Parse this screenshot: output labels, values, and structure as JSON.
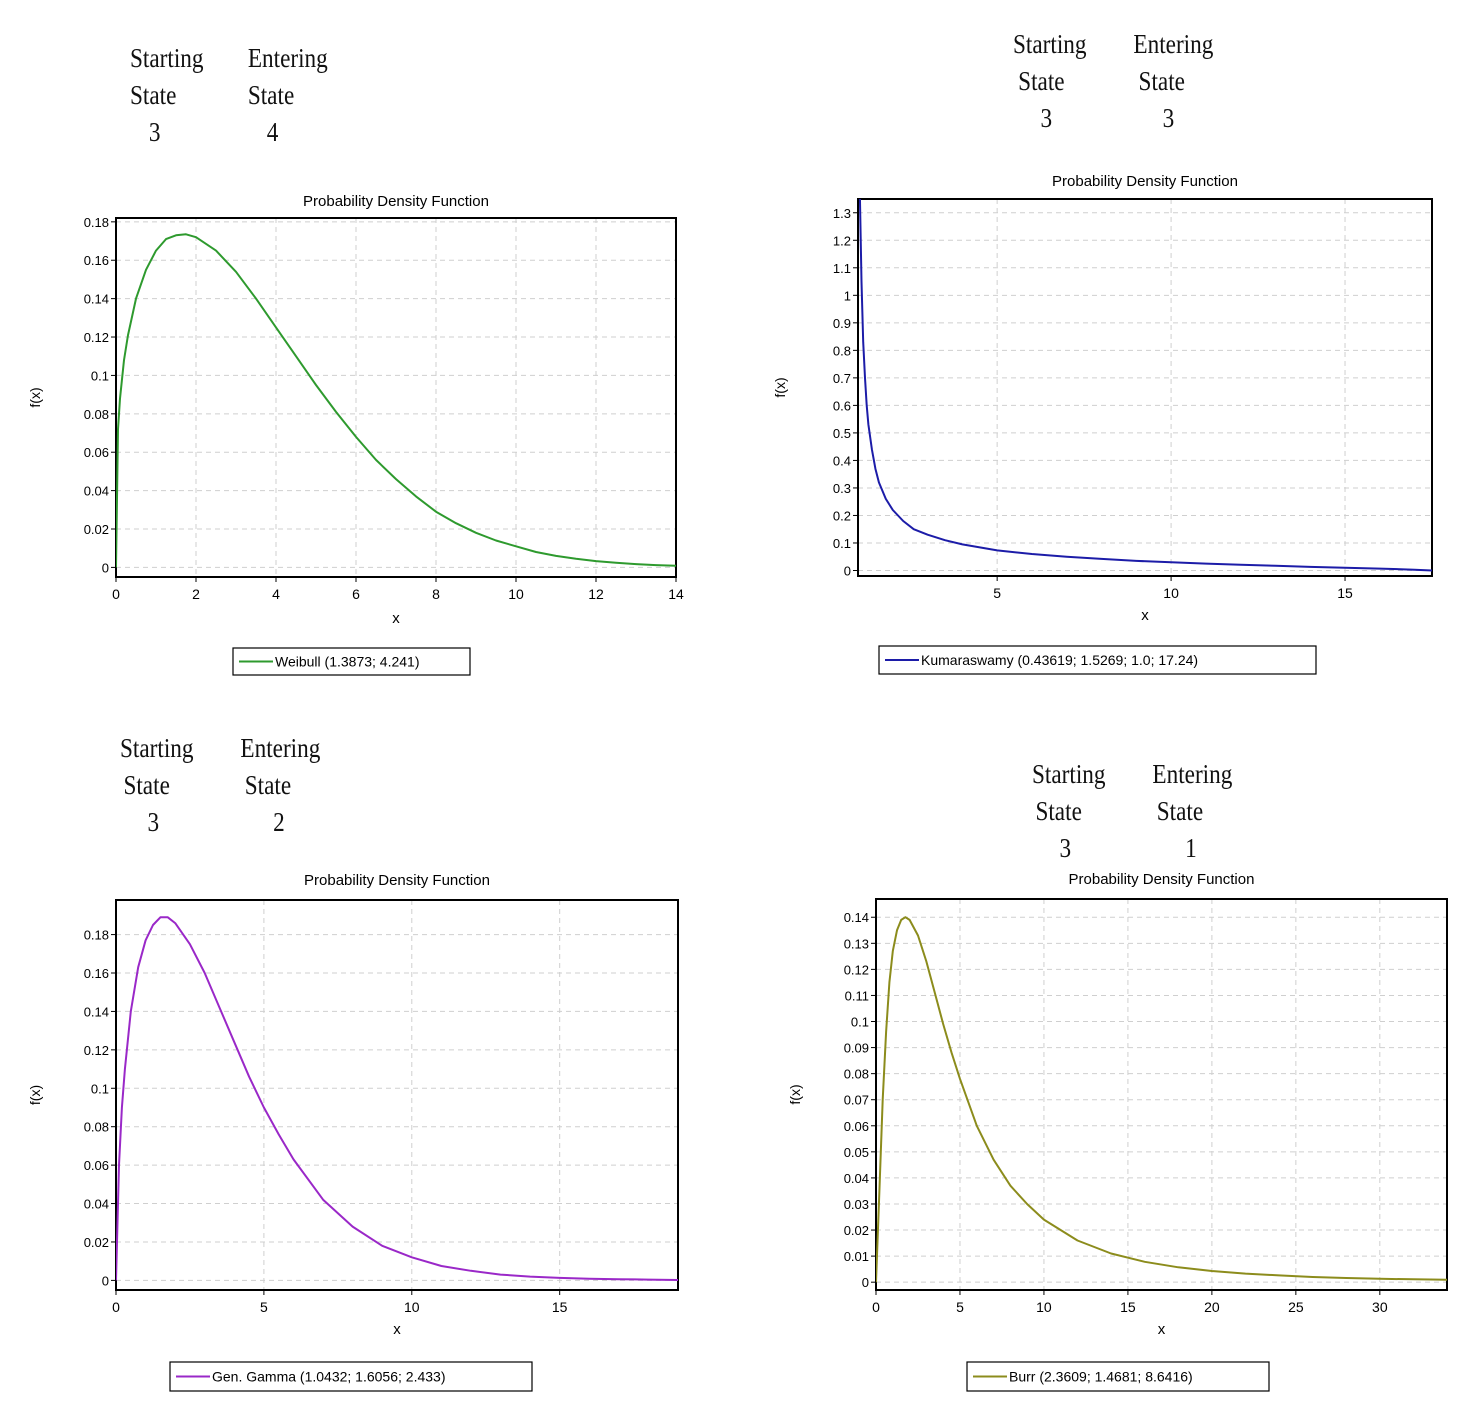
{
  "panels": [
    {
      "starting_label": [
        "Starting",
        "State"
      ],
      "entering_label": [
        "Entering",
        "State"
      ],
      "starting_state": "3",
      "entering_state": "4"
    },
    {
      "starting_label": [
        "Starting",
        "State"
      ],
      "entering_label": [
        "Entering",
        "State"
      ],
      "starting_state": "3",
      "entering_state": "3"
    },
    {
      "starting_label": [
        "Starting",
        "State"
      ],
      "entering_label": [
        "Entering",
        "State"
      ],
      "starting_state": "3",
      "entering_state": "2"
    },
    {
      "starting_label": [
        "Starting",
        "State"
      ],
      "entering_label": [
        "Entering",
        "State"
      ],
      "starting_state": "3",
      "entering_state": "1"
    }
  ],
  "chart_data": [
    {
      "type": "line",
      "title": "Probability Density Function",
      "xlabel": "x",
      "ylabel": "f(x)",
      "xlim": [
        0,
        14
      ],
      "ylim": [
        -0.005,
        0.182
      ],
      "xticks": [
        "0",
        "2",
        "4",
        "6",
        "8",
        "10",
        "12",
        "14"
      ],
      "xtick_values": [
        0,
        2,
        4,
        6,
        8,
        10,
        12,
        14
      ],
      "yticks": [
        "0",
        "0.02",
        "0.04",
        "0.06",
        "0.08",
        "0.1",
        "0.12",
        "0.14",
        "0.16",
        "0.18"
      ],
      "ytick_values": [
        0,
        0.02,
        0.04,
        0.06,
        0.08,
        0.1,
        0.12,
        0.14,
        0.16,
        0.18
      ],
      "grid": true,
      "legend": "bottom-center",
      "series": [
        {
          "name": "Weibull (1.3873; 4.241)",
          "color": "#2e9a2e",
          "x": [
            0,
            0.05,
            0.1,
            0.2,
            0.3,
            0.5,
            0.75,
            1,
            1.25,
            1.5,
            1.75,
            2,
            2.5,
            3,
            3.5,
            4,
            4.5,
            5,
            5.5,
            6,
            6.5,
            7,
            7.5,
            8,
            8.5,
            9,
            9.5,
            10,
            10.5,
            11,
            11.5,
            12,
            12.5,
            13,
            13.5,
            14
          ],
          "y": [
            0,
            0.072,
            0.088,
            0.108,
            0.121,
            0.14,
            0.155,
            0.165,
            0.171,
            0.173,
            0.1735,
            0.172,
            0.165,
            0.154,
            0.14,
            0.125,
            0.11,
            0.095,
            0.081,
            0.068,
            0.056,
            0.046,
            0.037,
            0.029,
            0.023,
            0.018,
            0.014,
            0.011,
            0.008,
            0.006,
            0.0045,
            0.0033,
            0.0024,
            0.0017,
            0.0012,
            0.0009
          ]
        }
      ]
    },
    {
      "type": "line",
      "title": "Probability Density Function",
      "xlabel": "x",
      "ylabel": "f(x)",
      "xlim": [
        1,
        17.5
      ],
      "ylim": [
        -0.02,
        1.35
      ],
      "xticks": [
        "5",
        "10",
        "15"
      ],
      "xtick_values": [
        5,
        10,
        15
      ],
      "yticks": [
        "0",
        "0.1",
        "0.2",
        "0.3",
        "0.4",
        "0.5",
        "0.6",
        "0.7",
        "0.8",
        "0.9",
        "1",
        "1.1",
        "1.2",
        "1.3"
      ],
      "ytick_values": [
        0,
        0.1,
        0.2,
        0.3,
        0.4,
        0.5,
        0.6,
        0.7,
        0.8,
        0.9,
        1,
        1.1,
        1.2,
        1.3
      ],
      "grid": true,
      "legend": "bottom-center",
      "series": [
        {
          "name": "Kumaraswamy (0.43619; 1.5269; 1.0; 17.24)",
          "color": "#1c1ca8",
          "x": [
            1.05,
            1.1,
            1.15,
            1.2,
            1.25,
            1.3,
            1.4,
            1.5,
            1.6,
            1.8,
            2,
            2.3,
            2.6,
            3,
            3.5,
            4,
            5,
            6,
            7,
            8,
            9,
            10,
            11,
            12,
            13,
            14,
            15,
            16,
            17,
            17.5
          ],
          "y": [
            1.4,
            1.05,
            0.83,
            0.7,
            0.6,
            0.53,
            0.44,
            0.37,
            0.32,
            0.26,
            0.22,
            0.18,
            0.15,
            0.13,
            0.11,
            0.095,
            0.073,
            0.06,
            0.05,
            0.042,
            0.035,
            0.03,
            0.025,
            0.021,
            0.017,
            0.013,
            0.01,
            0.007,
            0.003,
            0
          ]
        }
      ]
    },
    {
      "type": "line",
      "title": "Probability Density Function",
      "xlabel": "x",
      "ylabel": "f(x)",
      "xlim": [
        0,
        19
      ],
      "ylim": [
        -0.005,
        0.198
      ],
      "xticks": [
        "0",
        "5",
        "10",
        "15"
      ],
      "xtick_values": [
        0,
        5,
        10,
        15
      ],
      "yticks": [
        "0",
        "0.02",
        "0.04",
        "0.06",
        "0.08",
        "0.1",
        "0.12",
        "0.14",
        "0.16",
        "0.18"
      ],
      "ytick_values": [
        0,
        0.02,
        0.04,
        0.06,
        0.08,
        0.1,
        0.12,
        0.14,
        0.16,
        0.18
      ],
      "grid": true,
      "legend": "bottom-center",
      "series": [
        {
          "name": "Gen. Gamma (1.0432; 1.6056; 2.433)",
          "color": "#9a28c8",
          "x": [
            0,
            0.1,
            0.2,
            0.3,
            0.5,
            0.75,
            1,
            1.25,
            1.5,
            1.75,
            2,
            2.5,
            3,
            3.5,
            4,
            4.5,
            5,
            5.5,
            6,
            7,
            8,
            9,
            10,
            11,
            12,
            13,
            14,
            15,
            16,
            17,
            18,
            19
          ],
          "y": [
            0,
            0.06,
            0.09,
            0.11,
            0.14,
            0.163,
            0.177,
            0.185,
            0.189,
            0.189,
            0.186,
            0.175,
            0.16,
            0.142,
            0.124,
            0.106,
            0.09,
            0.076,
            0.063,
            0.042,
            0.028,
            0.018,
            0.012,
            0.0075,
            0.005,
            0.003,
            0.002,
            0.0013,
            0.0009,
            0.0006,
            0.0004,
            0.0002
          ]
        }
      ]
    },
    {
      "type": "line",
      "title": "Probability Density Function",
      "xlabel": "x",
      "ylabel": "f(x)",
      "xlim": [
        0,
        34
      ],
      "ylim": [
        -0.003,
        0.147
      ],
      "xticks": [
        "0",
        "5",
        "10",
        "15",
        "20",
        "25",
        "30"
      ],
      "xtick_values": [
        0,
        5,
        10,
        15,
        20,
        25,
        30
      ],
      "yticks": [
        "0",
        "0.01",
        "0.02",
        "0.03",
        "0.04",
        "0.05",
        "0.06",
        "0.07",
        "0.08",
        "0.09",
        "0.1",
        "0.11",
        "0.12",
        "0.13",
        "0.14"
      ],
      "ytick_values": [
        0,
        0.01,
        0.02,
        0.03,
        0.04,
        0.05,
        0.06,
        0.07,
        0.08,
        0.09,
        0.1,
        0.11,
        0.12,
        0.13,
        0.14
      ],
      "grid": true,
      "legend": "bottom-center",
      "series": [
        {
          "name": "Burr (2.3609; 1.4681; 8.6416)",
          "color": "#8c8c1c",
          "x": [
            0,
            0.2,
            0.4,
            0.6,
            0.8,
            1,
            1.25,
            1.5,
            1.75,
            2,
            2.5,
            3,
            3.5,
            4,
            4.5,
            5,
            6,
            7,
            8,
            9,
            10,
            12,
            14,
            16,
            18,
            20,
            22,
            24,
            26,
            28,
            30,
            32,
            34
          ],
          "y": [
            0,
            0.035,
            0.07,
            0.096,
            0.115,
            0.127,
            0.135,
            0.139,
            0.14,
            0.139,
            0.133,
            0.123,
            0.111,
            0.099,
            0.088,
            0.078,
            0.06,
            0.047,
            0.037,
            0.03,
            0.024,
            0.016,
            0.011,
            0.0078,
            0.0057,
            0.0043,
            0.0033,
            0.0026,
            0.002,
            0.0016,
            0.0013,
            0.0011,
            0.0009
          ]
        }
      ]
    }
  ]
}
